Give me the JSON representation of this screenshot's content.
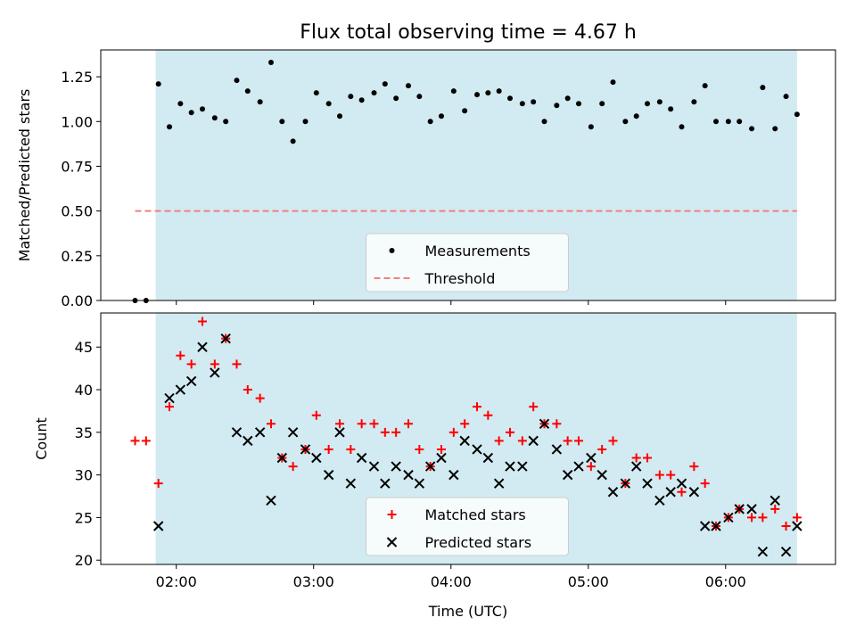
{
  "chart_data": {
    "title": "Flux total observing time = 4.67 h",
    "xlabel": "Time (UTC)",
    "x_unit": "hours UTC (decimal)",
    "xlim": [
      1.45,
      6.8
    ],
    "x_ticks": [
      2,
      3,
      4,
      5,
      6
    ],
    "x_tick_labels": [
      "02:00",
      "03:00",
      "04:00",
      "05:00",
      "06:00"
    ],
    "shaded_span": [
      1.85,
      6.52
    ],
    "shade_color": "#add8e6",
    "charts": [
      {
        "type": "scatter",
        "ylabel": "Matched/Predicted stars",
        "ylim": [
          0,
          1.4
        ],
        "y_ticks": [
          0,
          0.25,
          0.5,
          0.75,
          1.0,
          1.25
        ],
        "y_tick_labels": [
          "0.00",
          "0.25",
          "0.50",
          "0.75",
          "1.00",
          "1.25"
        ],
        "legend_position": "lower-center",
        "series": [
          {
            "name": "Measurements",
            "marker": "dot",
            "color": "#000000",
            "x": [
              1.7,
              1.78,
              1.87,
              1.95,
              2.03,
              2.11,
              2.19,
              2.28,
              2.36,
              2.44,
              2.52,
              2.61,
              2.69,
              2.77,
              2.85,
              2.94,
              3.02,
              3.11,
              3.19,
              3.27,
              3.35,
              3.44,
              3.52,
              3.6,
              3.69,
              3.77,
              3.85,
              3.93,
              4.02,
              4.1,
              4.19,
              4.27,
              4.35,
              4.43,
              4.52,
              4.6,
              4.68,
              4.77,
              4.85,
              4.93,
              5.02,
              5.1,
              5.18,
              5.27,
              5.35,
              5.43,
              5.52,
              5.6,
              5.68,
              5.77,
              5.85,
              5.93,
              6.02,
              6.1,
              6.19,
              6.27,
              6.36,
              6.44,
              6.52
            ],
            "y": [
              0.0,
              0.0,
              1.21,
              0.97,
              1.1,
              1.05,
              1.07,
              1.02,
              1.0,
              1.23,
              1.17,
              1.11,
              1.33,
              1.0,
              0.89,
              1.0,
              1.16,
              1.1,
              1.03,
              1.14,
              1.12,
              1.16,
              1.21,
              1.13,
              1.2,
              1.14,
              1.0,
              1.03,
              1.17,
              1.06,
              1.15,
              1.16,
              1.17,
              1.13,
              1.1,
              1.11,
              1.0,
              1.09,
              1.13,
              1.1,
              0.97,
              1.1,
              1.22,
              1.0,
              1.03,
              1.1,
              1.11,
              1.07,
              0.97,
              1.11,
              1.2,
              1.0,
              1.0,
              1.0,
              0.96,
              1.19,
              0.96,
              1.14,
              1.04
            ]
          },
          {
            "name": "Threshold",
            "marker": "dashed-line",
            "color": "#f08080",
            "x": [
              1.7,
              6.52
            ],
            "y": [
              0.5,
              0.5
            ]
          }
        ]
      },
      {
        "type": "scatter",
        "ylabel": "Count",
        "ylim": [
          19.5,
          49
        ],
        "y_ticks": [
          20,
          25,
          30,
          35,
          40,
          45
        ],
        "y_tick_labels": [
          "20",
          "25",
          "30",
          "35",
          "40",
          "45"
        ],
        "legend_position": "lower-center",
        "series": [
          {
            "name": "Matched stars",
            "marker": "plus",
            "color": "#ff0000",
            "x": [
              1.7,
              1.78,
              1.87,
              1.95,
              2.03,
              2.11,
              2.19,
              2.28,
              2.36,
              2.44,
              2.52,
              2.61,
              2.69,
              2.77,
              2.85,
              2.94,
              3.02,
              3.11,
              3.19,
              3.27,
              3.35,
              3.44,
              3.52,
              3.6,
              3.69,
              3.77,
              3.85,
              3.93,
              4.02,
              4.1,
              4.19,
              4.27,
              4.35,
              4.43,
              4.52,
              4.6,
              4.68,
              4.77,
              4.85,
              4.93,
              5.02,
              5.1,
              5.18,
              5.27,
              5.35,
              5.43,
              5.52,
              5.6,
              5.68,
              5.77,
              5.85,
              5.93,
              6.02,
              6.1,
              6.19,
              6.27,
              6.36,
              6.44,
              6.52
            ],
            "y": [
              34,
              34,
              29,
              38,
              44,
              43,
              48,
              43,
              46,
              43,
              40,
              39,
              36,
              32,
              31,
              33,
              37,
              33,
              36,
              33,
              36,
              36,
              35,
              35,
              36,
              33,
              31,
              33,
              35,
              36,
              38,
              37,
              34,
              35,
              34,
              38,
              36,
              36,
              34,
              34,
              31,
              33,
              34,
              29,
              32,
              32,
              30,
              30,
              28,
              31,
              29,
              24,
              25,
              26,
              25,
              25,
              26,
              24,
              25
            ]
          },
          {
            "name": "Predicted stars",
            "marker": "x",
            "color": "#000000",
            "x": [
              1.87,
              1.95,
              2.03,
              2.11,
              2.19,
              2.28,
              2.36,
              2.44,
              2.52,
              2.61,
              2.69,
              2.77,
              2.85,
              2.94,
              3.02,
              3.11,
              3.19,
              3.27,
              3.35,
              3.44,
              3.52,
              3.6,
              3.69,
              3.77,
              3.85,
              3.93,
              4.02,
              4.1,
              4.19,
              4.27,
              4.35,
              4.43,
              4.52,
              4.6,
              4.68,
              4.77,
              4.85,
              4.93,
              5.02,
              5.1,
              5.18,
              5.27,
              5.35,
              5.43,
              5.52,
              5.6,
              5.68,
              5.77,
              5.85,
              5.93,
              6.02,
              6.1,
              6.19,
              6.27,
              6.36,
              6.44,
              6.52
            ],
            "y": [
              24,
              39,
              40,
              41,
              45,
              42,
              46,
              35,
              34,
              35,
              27,
              32,
              35,
              33,
              32,
              30,
              35,
              29,
              32,
              31,
              29,
              31,
              30,
              29,
              31,
              32,
              30,
              34,
              33,
              32,
              29,
              31,
              31,
              34,
              36,
              33,
              30,
              31,
              32,
              30,
              28,
              29,
              31,
              29,
              27,
              28,
              29,
              28,
              24,
              24,
              25,
              26,
              26,
              21,
              27,
              21,
              24
            ]
          }
        ]
      }
    ]
  }
}
